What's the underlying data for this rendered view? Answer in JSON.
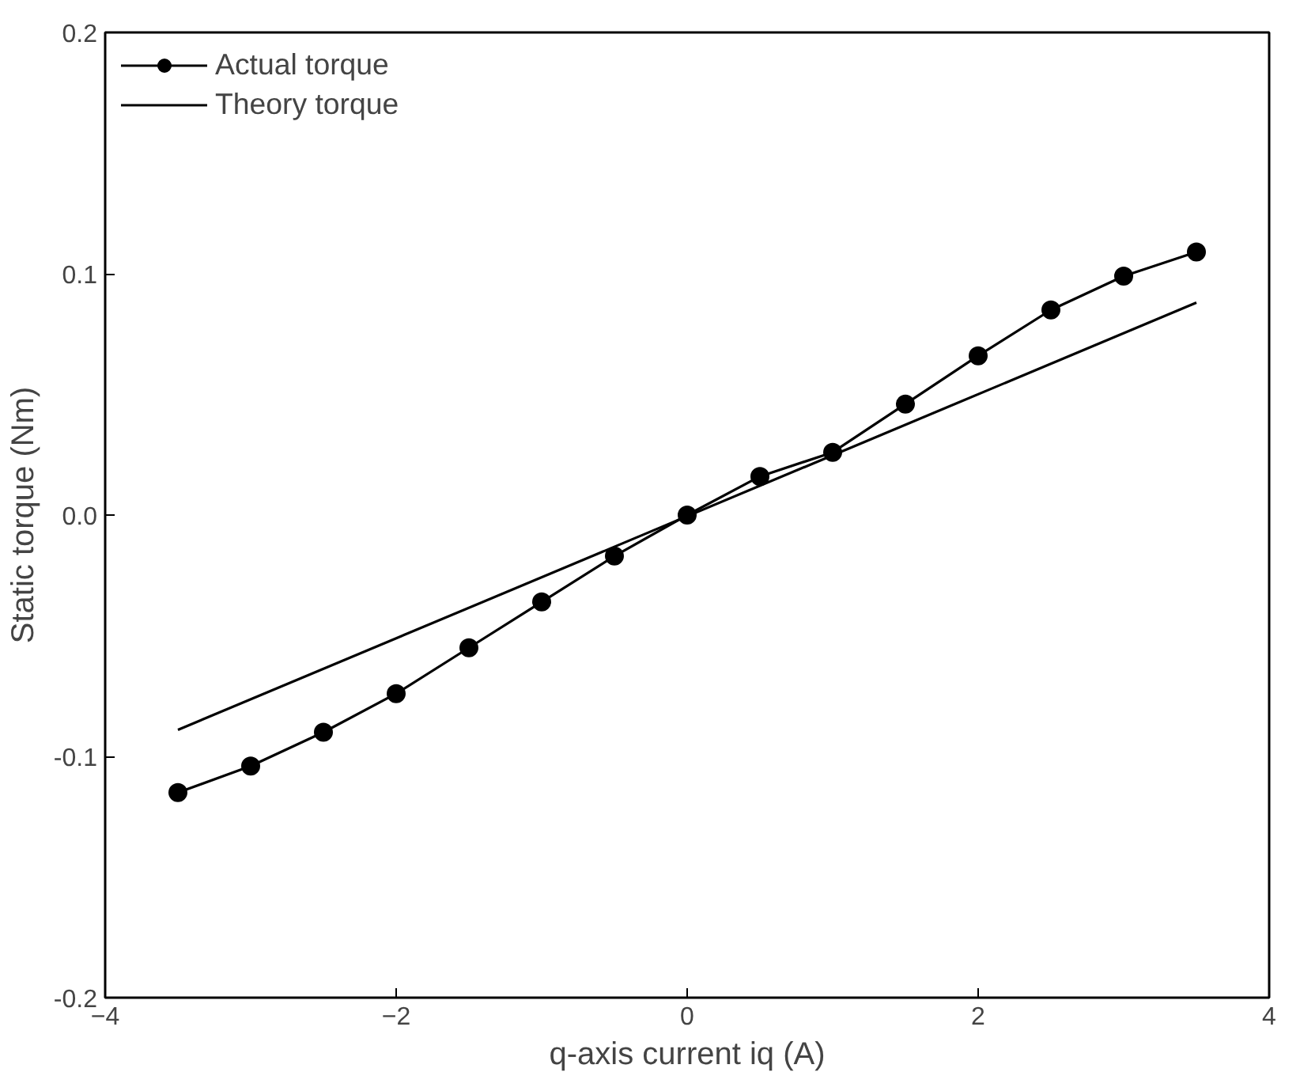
{
  "chart_data": {
    "type": "line",
    "xlabel": "q-axis current iq (A)",
    "ylabel": "Static torque (Nm)",
    "xlim": [
      -4,
      4
    ],
    "ylim": [
      -0.2,
      0.2
    ],
    "xticks": [
      -4,
      -2,
      0,
      2,
      4
    ],
    "yticks": [
      {
        "value": -0.2,
        "label": "-0.2"
      },
      {
        "value": -0.1,
        "label": "-0.1"
      },
      {
        "value": 0,
        "label": "0.0"
      },
      {
        "value": 0.1,
        "label": "0.1"
      },
      {
        "value": 0.2,
        "label": "0.2"
      }
    ],
    "grid": false,
    "legend": "top left",
    "series": [
      {
        "name": "Actual torque",
        "color": "#000000",
        "marker": "circle",
        "x": [
          -3.5,
          -3,
          -2.5,
          -2,
          -1.5,
          -1,
          -0.5,
          0,
          0.5,
          1,
          1.5,
          2,
          2.5,
          3,
          3.5
        ],
        "values": [
          -0.115,
          -0.104,
          -0.09,
          -0.074,
          -0.055,
          -0.036,
          -0.017,
          0,
          0.016,
          0.026,
          0.046,
          0.066,
          0.085,
          0.099,
          0.109
        ]
      },
      {
        "name": "Theory torque",
        "color": "#000000",
        "marker": "none",
        "x": [
          -3.5,
          3.5
        ],
        "values": [
          -0.089,
          0.088
        ]
      }
    ]
  }
}
